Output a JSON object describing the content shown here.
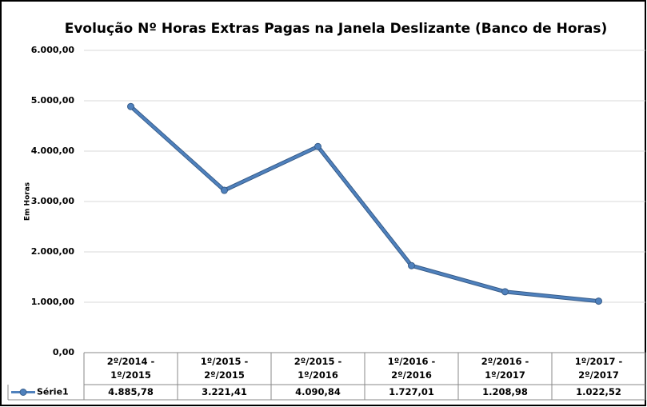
{
  "chart_data": {
    "type": "line",
    "title": "Evolução Nº Horas Extras Pagas na Janela Deslizante (Banco de Horas)",
    "y_label": "Em Horas",
    "categories": [
      "2º/2014 - 1º/2015",
      "1º/2015 - 2º/2015",
      "2º/2015 - 1º/2016",
      "1º/2016 - 2º/2016",
      "2º/2016 - 1º/2017",
      "1º/2017 - 2º/2017"
    ],
    "series": [
      {
        "name": "Série1",
        "color": "#4f81bd",
        "values": [
          4885.78,
          3221.41,
          4090.84,
          1727.01,
          1208.98,
          1022.52
        ],
        "value_labels": [
          "4.885,78",
          "3.221,41",
          "4.090,84",
          "1.727,01",
          "1.208,98",
          "1.022,52"
        ]
      }
    ],
    "ylim": [
      0,
      6000
    ],
    "yticks": [
      {
        "value": 0,
        "label": "0,00"
      },
      {
        "value": 1000,
        "label": "1.000,00"
      },
      {
        "value": 2000,
        "label": "2.000,00"
      },
      {
        "value": 3000,
        "label": "3.000,00"
      },
      {
        "value": 4000,
        "label": "4.000,00"
      },
      {
        "value": 5000,
        "label": "5.000,00"
      },
      {
        "value": 6000,
        "label": "6.000,00"
      }
    ],
    "grid": true
  }
}
